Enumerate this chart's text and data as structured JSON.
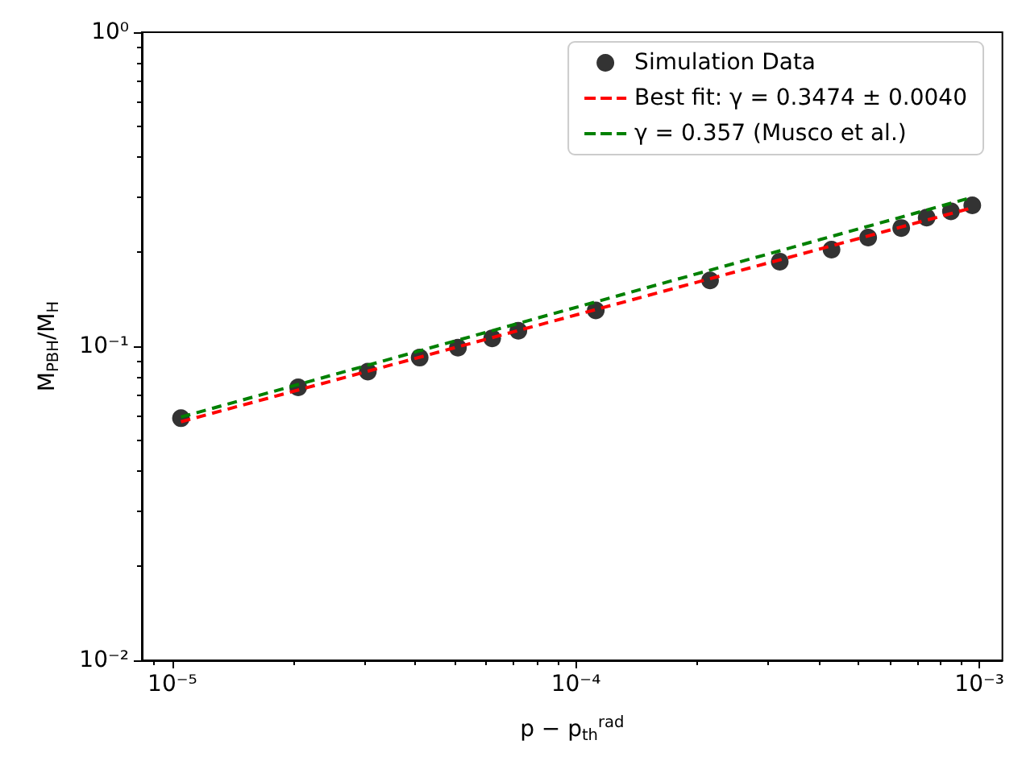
{
  "chart_data": {
    "type": "scatter",
    "xlabel": "p − p$_{th}$$^{rad}$",
    "ylabel": "M$_{PBH}$/M$_{H}$",
    "log": "xy",
    "grid": false,
    "legend": "top right",
    "marker": "circle",
    "xlim": [
      8.4e-06,
      0.00114
    ],
    "xticks": [
      {
        "value": 1e-05,
        "label": "10⁻⁵"
      },
      {
        "value": 0.0001,
        "label": "10⁻⁴"
      },
      {
        "value": 0.001,
        "label": "10⁻³"
      }
    ],
    "ylim": [
      0.01,
      1
    ],
    "yticks": [
      {
        "value": 0.01,
        "label": "10⁻²"
      },
      {
        "value": 0.1,
        "label": "10⁻¹"
      },
      {
        "value": 1,
        "label": "10⁰"
      }
    ],
    "series": [
      {
        "name": "Simulation Data",
        "color": "#000000",
        "x": [
          1.05e-05,
          2.05e-05,
          3.05e-05,
          4.1e-05,
          5.1e-05,
          6.2e-05,
          7.2e-05,
          0.000112,
          0.000215,
          0.00032,
          0.00043,
          0.00053,
          0.00064,
          0.00074,
          0.00085,
          0.00096
        ],
        "values": [
          0.059,
          0.074,
          0.083,
          0.092,
          0.099,
          0.106,
          0.112,
          0.13,
          0.162,
          0.186,
          0.203,
          0.222,
          0.238,
          0.257,
          0.269,
          0.281
        ]
      },
      {
        "name": "Best fit: γ = 0.3474 ± 0.0040",
        "type": "line",
        "line_style": "dashed",
        "marker": "none",
        "color": "#ff0000",
        "x": [
          1.05e-05,
          0.00096
        ],
        "values": [
          0.0575,
          0.276
        ]
      },
      {
        "name": "γ = 0.357 (Musco et al.)",
        "type": "line",
        "line_style": "dashed",
        "marker": "none",
        "color": "#008000",
        "x": [
          1.05e-05,
          0.00096
        ],
        "values": [
          0.0595,
          0.298
        ]
      }
    ]
  }
}
